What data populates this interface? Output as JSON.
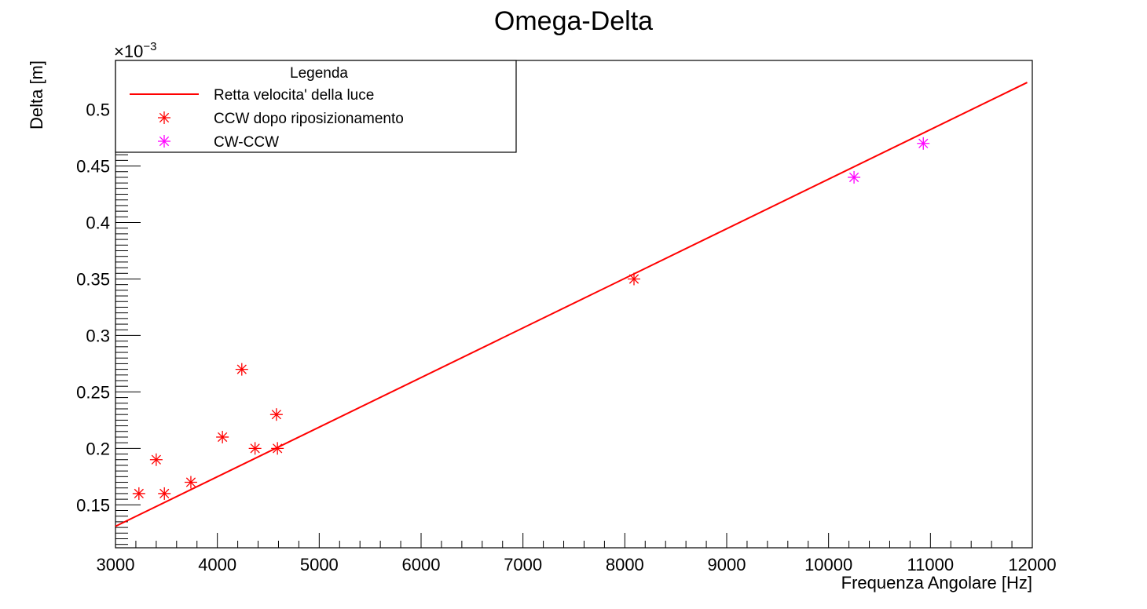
{
  "chart_data": {
    "type": "scatter",
    "title": "Omega-Delta",
    "xlabel": "Frequenza Angolare [Hz]",
    "ylabel": "Delta [m]",
    "y_exponent_base": "×10",
    "y_exponent_power": "−3",
    "xlim": [
      3000,
      12000
    ],
    "ylim": [
      0.112,
      0.5435
    ],
    "x_ticks": [
      3000,
      4000,
      5000,
      6000,
      7000,
      8000,
      9000,
      10000,
      11000,
      12000
    ],
    "x_tick_labels": [
      "3000",
      "4000",
      "5000",
      "6000",
      "7000",
      "8000",
      "9000",
      "10000",
      "11000",
      "12000"
    ],
    "y_ticks": [
      0.15,
      0.2,
      0.25,
      0.3,
      0.35,
      0.4,
      0.45,
      0.5
    ],
    "y_tick_labels": [
      "0.15",
      "0.2",
      "0.25",
      "0.3",
      "0.35",
      "0.4",
      "0.45",
      "0.5"
    ],
    "grid": false,
    "legend": {
      "title": "Legenda",
      "position": "top-left",
      "entries": [
        {
          "label": "Retta velocita' della luce",
          "kind": "line",
          "color": "#ff0000"
        },
        {
          "label": "CCW dopo riposizionamento",
          "kind": "marker",
          "color": "#ff0000"
        },
        {
          "label": "CW-CCW",
          "kind": "marker",
          "color": "#ff00ff"
        }
      ]
    },
    "series": [
      {
        "name": "Retta velocita' della luce",
        "kind": "line",
        "color": "#ff0000",
        "x": [
          3000,
          11950
        ],
        "y": [
          0.131,
          0.524
        ]
      },
      {
        "name": "CCW dopo riposizionamento",
        "kind": "marker",
        "color": "#ff0000",
        "x": [
          3230,
          3400,
          3480,
          3740,
          4050,
          4240,
          4370,
          4580,
          4590,
          8090
        ],
        "y": [
          0.16,
          0.19,
          0.16,
          0.17,
          0.21,
          0.27,
          0.2,
          0.23,
          0.2,
          0.35
        ]
      },
      {
        "name": "CW-CCW",
        "kind": "marker",
        "color": "#ff00ff",
        "x": [
          10250,
          10930
        ],
        "y": [
          0.44,
          0.47
        ]
      }
    ]
  }
}
